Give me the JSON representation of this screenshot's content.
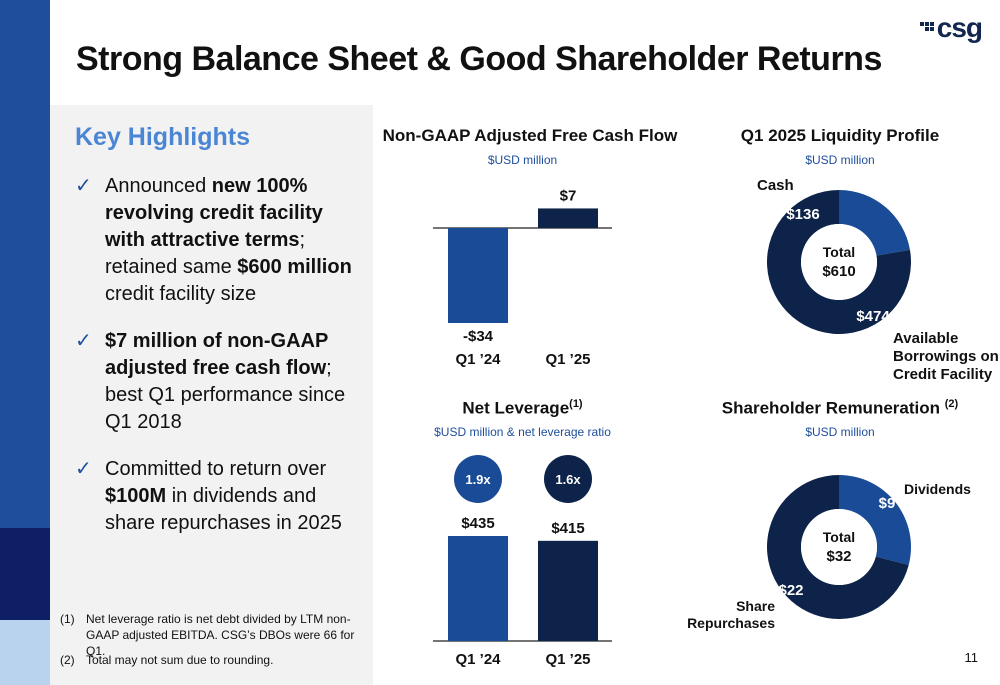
{
  "title": "Strong Balance Sheet & Good Shareholder Returns",
  "logo_text": "csg",
  "page_number": "11",
  "highlights": {
    "heading": "Key Highlights",
    "bullets": [
      {
        "segments": [
          {
            "t": "Announced ",
            "b": false
          },
          {
            "t": "new 100% revolving credit facility with attractive terms",
            "b": true
          },
          {
            "t": "; retained same ",
            "b": false
          },
          {
            "t": "$600 million",
            "b": true
          },
          {
            "t": " credit facility size",
            "b": false
          }
        ]
      },
      {
        "segments": [
          {
            "t": "$7 million of non-GAAP adjusted free cash flow",
            "b": true
          },
          {
            "t": "; best Q1 performance since Q1 2018",
            "b": false
          }
        ]
      },
      {
        "segments": [
          {
            "t": "Committed to return over ",
            "b": false
          },
          {
            "t": "$100M",
            "b": true
          },
          {
            "t": " in dividends and share repurchases in 2025",
            "b": false
          }
        ]
      }
    ]
  },
  "footnotes": [
    {
      "num": "(1)",
      "text": "Net leverage ratio is net debt divided by LTM non-GAAP adjusted EBITDA. CSG’s DBOs were 66 for Q1."
    },
    {
      "num": "(2)",
      "text": "Total may not sum due to rounding."
    }
  ],
  "colors": {
    "mid_blue": "#1a4b97",
    "navy": "#0d2349",
    "accent_light": "#4a86d4"
  },
  "chart_data": [
    {
      "type": "bar",
      "title": "Non-GAAP Adjusted Free Cash Flow",
      "subtitle": "$USD million",
      "categories": [
        "Q1 ’24",
        "Q1 ’25"
      ],
      "values": [
        -34,
        7
      ],
      "labels": [
        "-$34",
        "$7"
      ]
    },
    {
      "type": "bar",
      "title": "Net Leverage",
      "title_sup": "(1)",
      "subtitle": "$USD million & net leverage ratio",
      "categories": [
        "Q1 ’24",
        "Q1 ’25"
      ],
      "values": [
        435,
        415
      ],
      "labels": [
        "$435",
        "$415"
      ],
      "ratios": [
        "1.9x",
        "1.6x"
      ]
    },
    {
      "type": "pie",
      "title": "Q1 2025 Liquidity Profile",
      "subtitle": "$USD million",
      "center_label": "Total",
      "center_value": "$610",
      "slices": [
        {
          "name": "Cash",
          "value": 136,
          "label": "$136"
        },
        {
          "name": "Available Borrowings on Credit Facility",
          "value": 474,
          "label": "$474"
        }
      ]
    },
    {
      "type": "pie",
      "title": "Shareholder Remuneration",
      "title_sup": "(2)",
      "subtitle": "$USD million",
      "center_label": "Total",
      "center_value": "$32",
      "slices": [
        {
          "name": "Dividends",
          "value": 9,
          "label": "$9"
        },
        {
          "name": "Share Repurchases",
          "value": 22,
          "label": "$22"
        }
      ]
    }
  ]
}
